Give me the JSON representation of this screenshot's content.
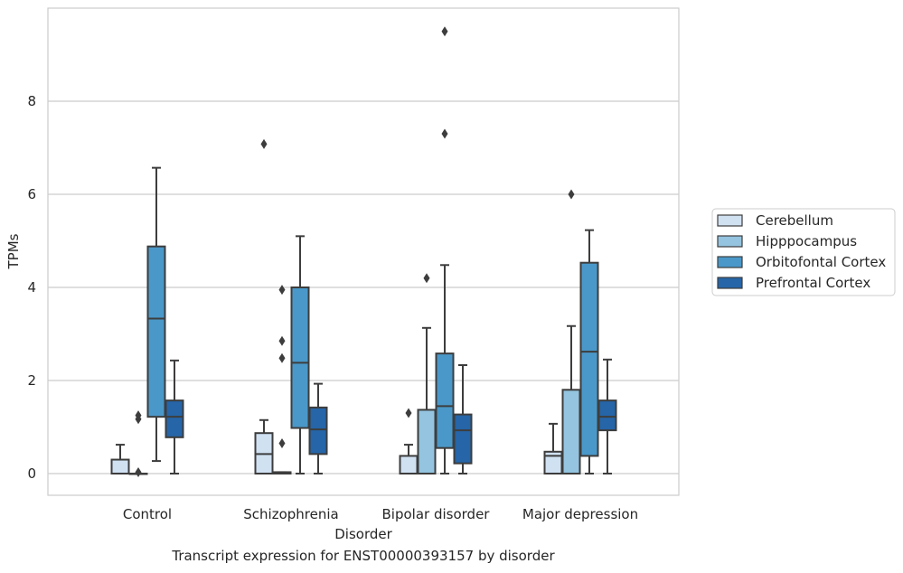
{
  "caption": "Transcript expression for ENST00000393157 by disorder",
  "chart_data": {
    "type": "box",
    "xlabel": "Disorder",
    "ylabel": "TPMs",
    "ylim": [
      -0.45,
      9.9
    ],
    "yticks": [
      0,
      2,
      4,
      6,
      8
    ],
    "grid": true,
    "legend_position": "right",
    "categories": [
      "Control",
      "Schizophrenia",
      "Bipolar disorder",
      "Major depression"
    ],
    "series": [
      {
        "name": "Cerebellum",
        "color": "#d0e1f2",
        "boxes": [
          {
            "whisker_low": 0,
            "q1": 0,
            "median": 0,
            "q3": 0.3,
            "whisker_high": 0.62,
            "outliers": []
          },
          {
            "whisker_low": 0,
            "q1": 0,
            "median": 0.42,
            "q3": 0.87,
            "whisker_high": 1.15,
            "outliers": [
              7.08
            ]
          },
          {
            "whisker_low": 0,
            "q1": 0,
            "median": 0,
            "q3": 0.38,
            "whisker_high": 0.62,
            "outliers": [
              1.3
            ]
          },
          {
            "whisker_low": 0,
            "q1": 0,
            "median": 0.38,
            "q3": 0.47,
            "whisker_high": 1.07,
            "outliers": []
          }
        ]
      },
      {
        "name": "Hipppocampus",
        "color": "#94c4df",
        "boxes": [
          {
            "whisker_low": 0,
            "q1": 0,
            "median": 0,
            "q3": 0,
            "whisker_high": 0,
            "outliers": [
              0.03,
              1.17,
              1.25
            ]
          },
          {
            "whisker_low": 0,
            "q1": 0,
            "median": 0,
            "q3": 0.03,
            "whisker_high": 0.03,
            "outliers": [
              0.65,
              2.48,
              2.85,
              3.95
            ]
          },
          {
            "whisker_low": 0,
            "q1": 0,
            "median": 0,
            "q3": 1.37,
            "whisker_high": 3.13,
            "outliers": [
              4.2
            ]
          },
          {
            "whisker_low": 0,
            "q1": 0,
            "median": 0,
            "q3": 1.8,
            "whisker_high": 3.17,
            "outliers": [
              6.0
            ]
          }
        ]
      },
      {
        "name": "Orbitofontal Cortex",
        "color": "#4a98c9",
        "boxes": [
          {
            "whisker_low": 0.27,
            "q1": 1.22,
            "median": 3.33,
            "q3": 4.88,
            "whisker_high": 6.57,
            "outliers": []
          },
          {
            "whisker_low": 0,
            "q1": 0.98,
            "median": 2.38,
            "q3": 4.0,
            "whisker_high": 5.1,
            "outliers": []
          },
          {
            "whisker_low": 0,
            "q1": 0.55,
            "median": 1.45,
            "q3": 2.58,
            "whisker_high": 4.48,
            "outliers": [
              7.3,
              9.5
            ]
          },
          {
            "whisker_low": 0,
            "q1": 0.38,
            "median": 2.62,
            "q3": 4.53,
            "whisker_high": 5.23,
            "outliers": []
          }
        ]
      },
      {
        "name": "Prefrontal Cortex",
        "color": "#2565a8",
        "boxes": [
          {
            "whisker_low": 0,
            "q1": 0.78,
            "median": 1.22,
            "q3": 1.57,
            "whisker_high": 2.43,
            "outliers": []
          },
          {
            "whisker_low": 0,
            "q1": 0.42,
            "median": 0.95,
            "q3": 1.42,
            "whisker_high": 1.93,
            "outliers": []
          },
          {
            "whisker_low": 0,
            "q1": 0.22,
            "median": 0.93,
            "q3": 1.27,
            "whisker_high": 2.33,
            "outliers": []
          },
          {
            "whisker_low": 0,
            "q1": 0.93,
            "median": 1.22,
            "q3": 1.57,
            "whisker_high": 2.45,
            "outliers": []
          }
        ]
      }
    ]
  }
}
